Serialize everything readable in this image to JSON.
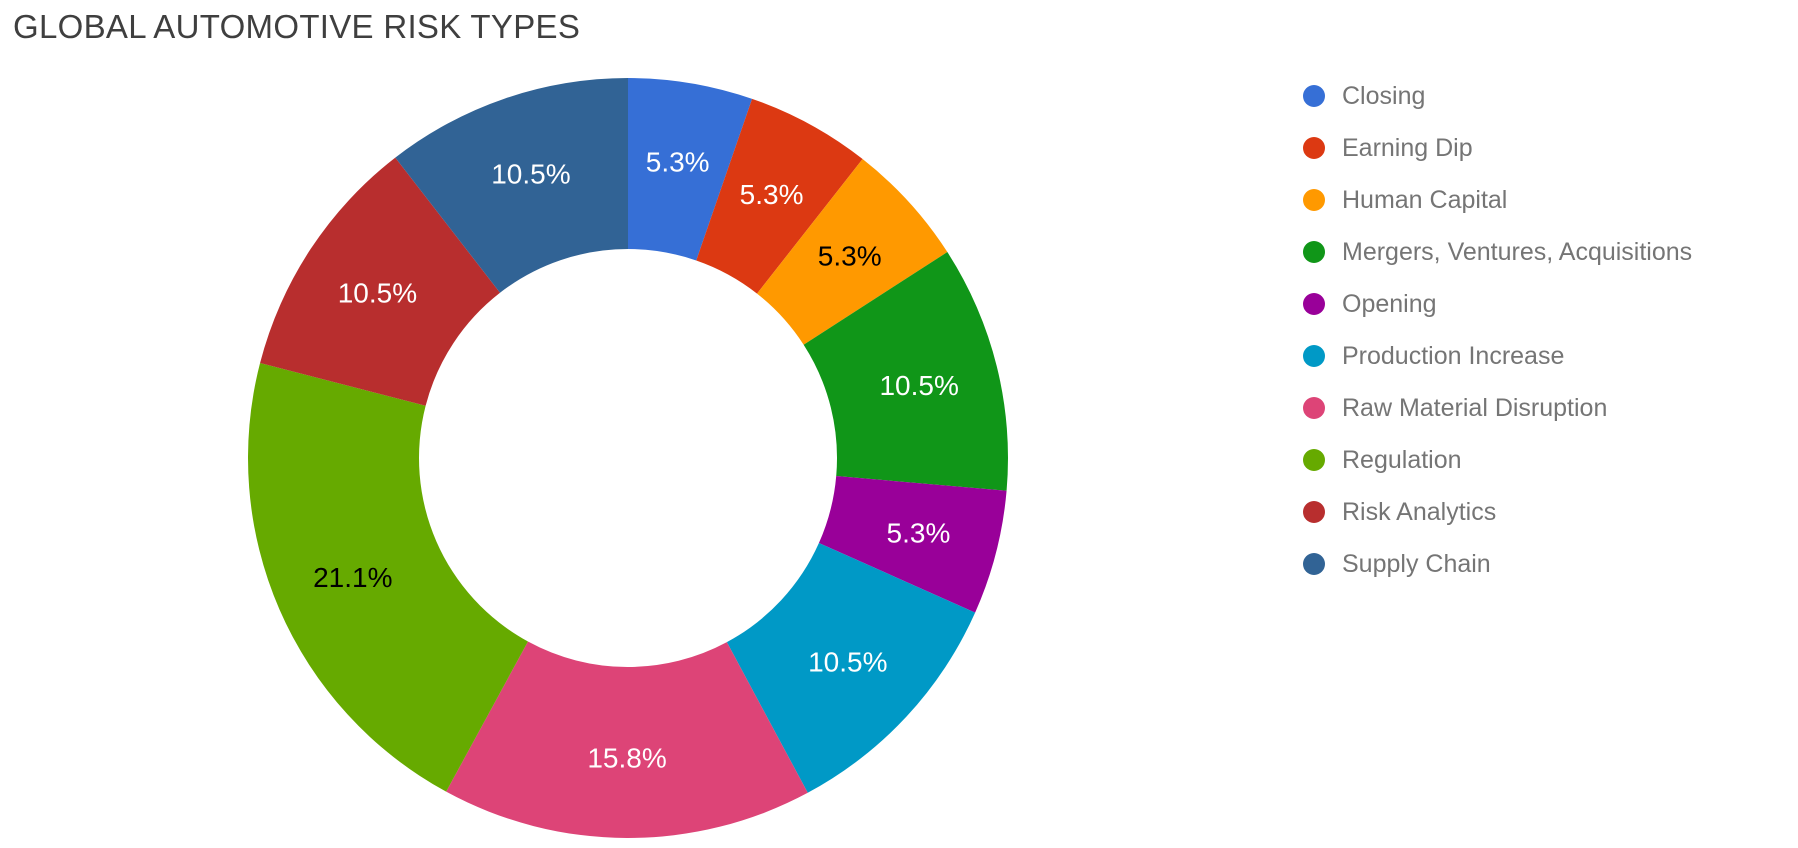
{
  "page": {
    "background": "#ffffff",
    "title_color": "#3f3f3f",
    "legend_text_color": "#757575"
  },
  "chart_data": {
    "type": "pie",
    "subtype": "donut",
    "title": "GLOBAL AUTOMOTIVE RISK TYPES",
    "legend_position": "right",
    "donut_hole_ratio": 0.55,
    "start_angle_deg": 0,
    "direction": "clockwise",
    "slices": [
      {
        "label": "Closing",
        "value": 5.3,
        "display": "5.3%",
        "color": "#366fd6",
        "label_color": "#ffffff"
      },
      {
        "label": "Earning Dip",
        "value": 5.3,
        "display": "5.3%",
        "color": "#dc3912",
        "label_color": "#ffffff"
      },
      {
        "label": "Human Capital",
        "value": 5.3,
        "display": "5.3%",
        "color": "#ff9900",
        "label_color": "#000000"
      },
      {
        "label": "Mergers, Ventures, Acquisitions",
        "value": 10.5,
        "display": "10.5%",
        "color": "#109618",
        "label_color": "#ffffff"
      },
      {
        "label": "Opening",
        "value": 5.3,
        "display": "5.3%",
        "color": "#990099",
        "label_color": "#ffffff"
      },
      {
        "label": "Production Increase",
        "value": 10.5,
        "display": "10.5%",
        "color": "#0099c6",
        "label_color": "#ffffff"
      },
      {
        "label": "Raw Material Disruption",
        "value": 15.8,
        "display": "15.8%",
        "color": "#dd4477",
        "label_color": "#ffffff"
      },
      {
        "label": "Regulation",
        "value": 21.1,
        "display": "21.1%",
        "color": "#66aa00",
        "label_color": "#000000"
      },
      {
        "label": "Risk Analytics",
        "value": 10.5,
        "display": "10.5%",
        "color": "#b82e2e",
        "label_color": "#ffffff"
      },
      {
        "label": "Supply Chain",
        "value": 10.5,
        "display": "10.5%",
        "color": "#316395",
        "label_color": "#ffffff"
      }
    ]
  }
}
